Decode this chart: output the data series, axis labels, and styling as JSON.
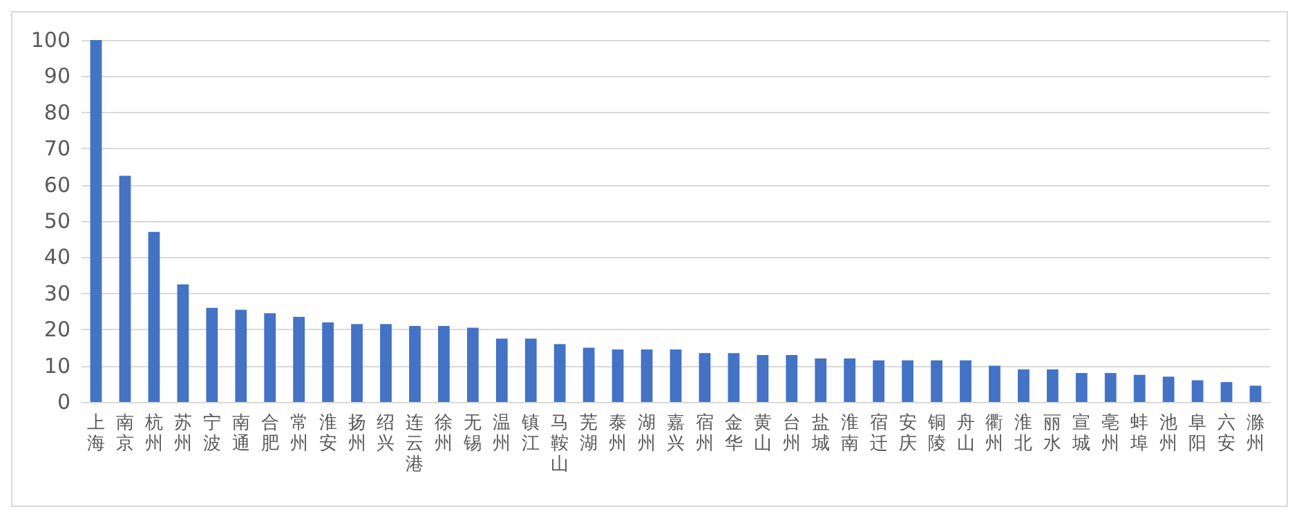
{
  "chart_data": {
    "type": "bar",
    "categories": [
      "上海",
      "南京",
      "杭州",
      "苏州",
      "宁波",
      "南通",
      "合肥",
      "常州",
      "淮安",
      "扬州",
      "绍兴",
      "连云港",
      "徐州",
      "无锡",
      "温州",
      "镇江",
      "马鞍山",
      "芜湖",
      "泰州",
      "湖州",
      "嘉兴",
      "宿州",
      "金华",
      "黄山",
      "台州",
      "盐城",
      "淮南",
      "宿迁",
      "安庆",
      "铜陵",
      "舟山",
      "衢州",
      "淮北",
      "丽水",
      "宣城",
      "亳州",
      "蚌埠",
      "池州",
      "阜阳",
      "六安",
      "滁州"
    ],
    "values": [
      100,
      62.5,
      47,
      32.5,
      26,
      25.5,
      24.5,
      23.5,
      22,
      21.5,
      21.5,
      21,
      21,
      20.5,
      17.5,
      17.5,
      16,
      15,
      14.5,
      14.5,
      14.5,
      13.5,
      13.5,
      13,
      13,
      12,
      12,
      11.5,
      11.5,
      11.5,
      11.5,
      10,
      9,
      9,
      8,
      8,
      7.5,
      7,
      6,
      5.5,
      4.5
    ],
    "color": "#4472c4",
    "ylim": [
      0,
      100
    ],
    "yticks": [
      0,
      10,
      20,
      30,
      40,
      50,
      60,
      70,
      80,
      90,
      100
    ],
    "grid": "y"
  }
}
